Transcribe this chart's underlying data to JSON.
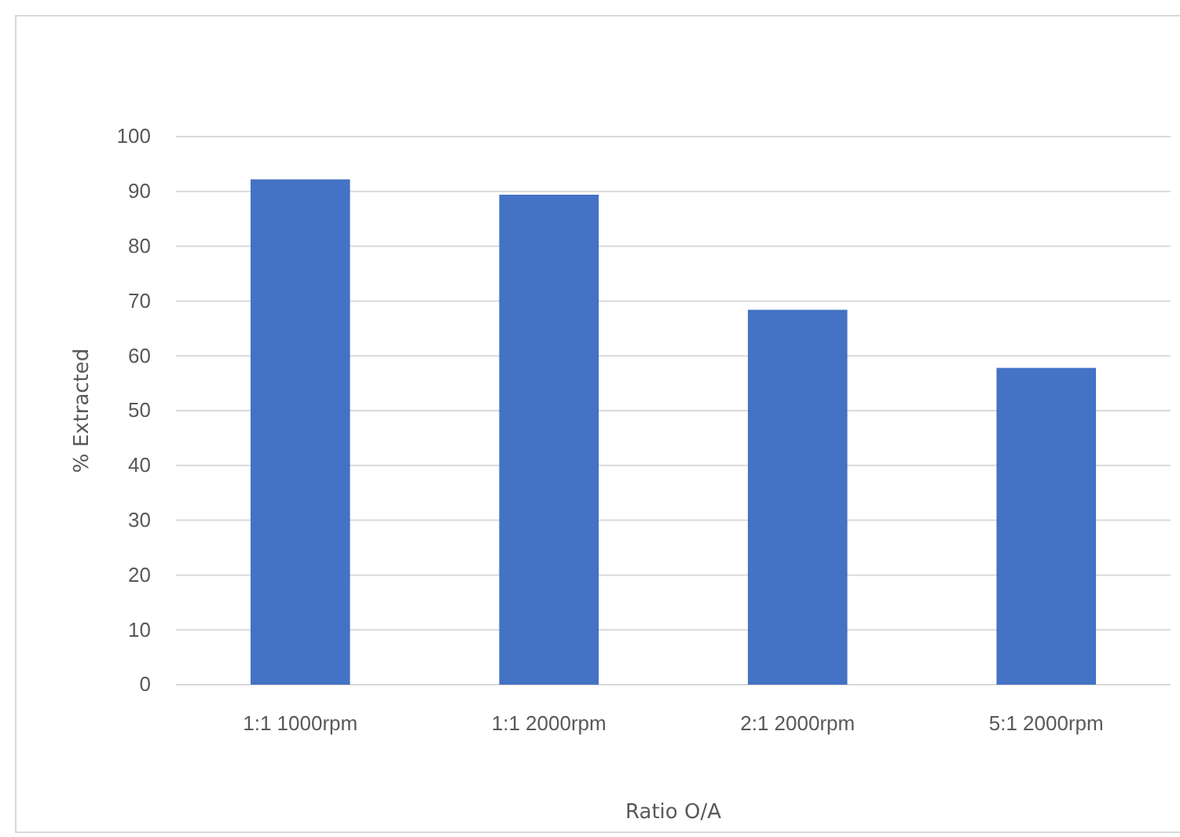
{
  "chart_data": {
    "type": "bar",
    "xlabel": "Ratio O/A",
    "ylabel": "% Extracted",
    "categories": [
      "1:1 1000rpm",
      "1:1 2000rpm",
      "2:1 2000rpm",
      "5:1 2000rpm"
    ],
    "values": [
      92.2,
      89.4,
      68.4,
      57.8
    ],
    "color": "#4472c4",
    "ylim": [
      0,
      100
    ],
    "yticks": [
      0,
      10,
      20,
      30,
      40,
      50,
      60,
      70,
      80,
      90,
      100
    ],
    "grid": "y"
  }
}
